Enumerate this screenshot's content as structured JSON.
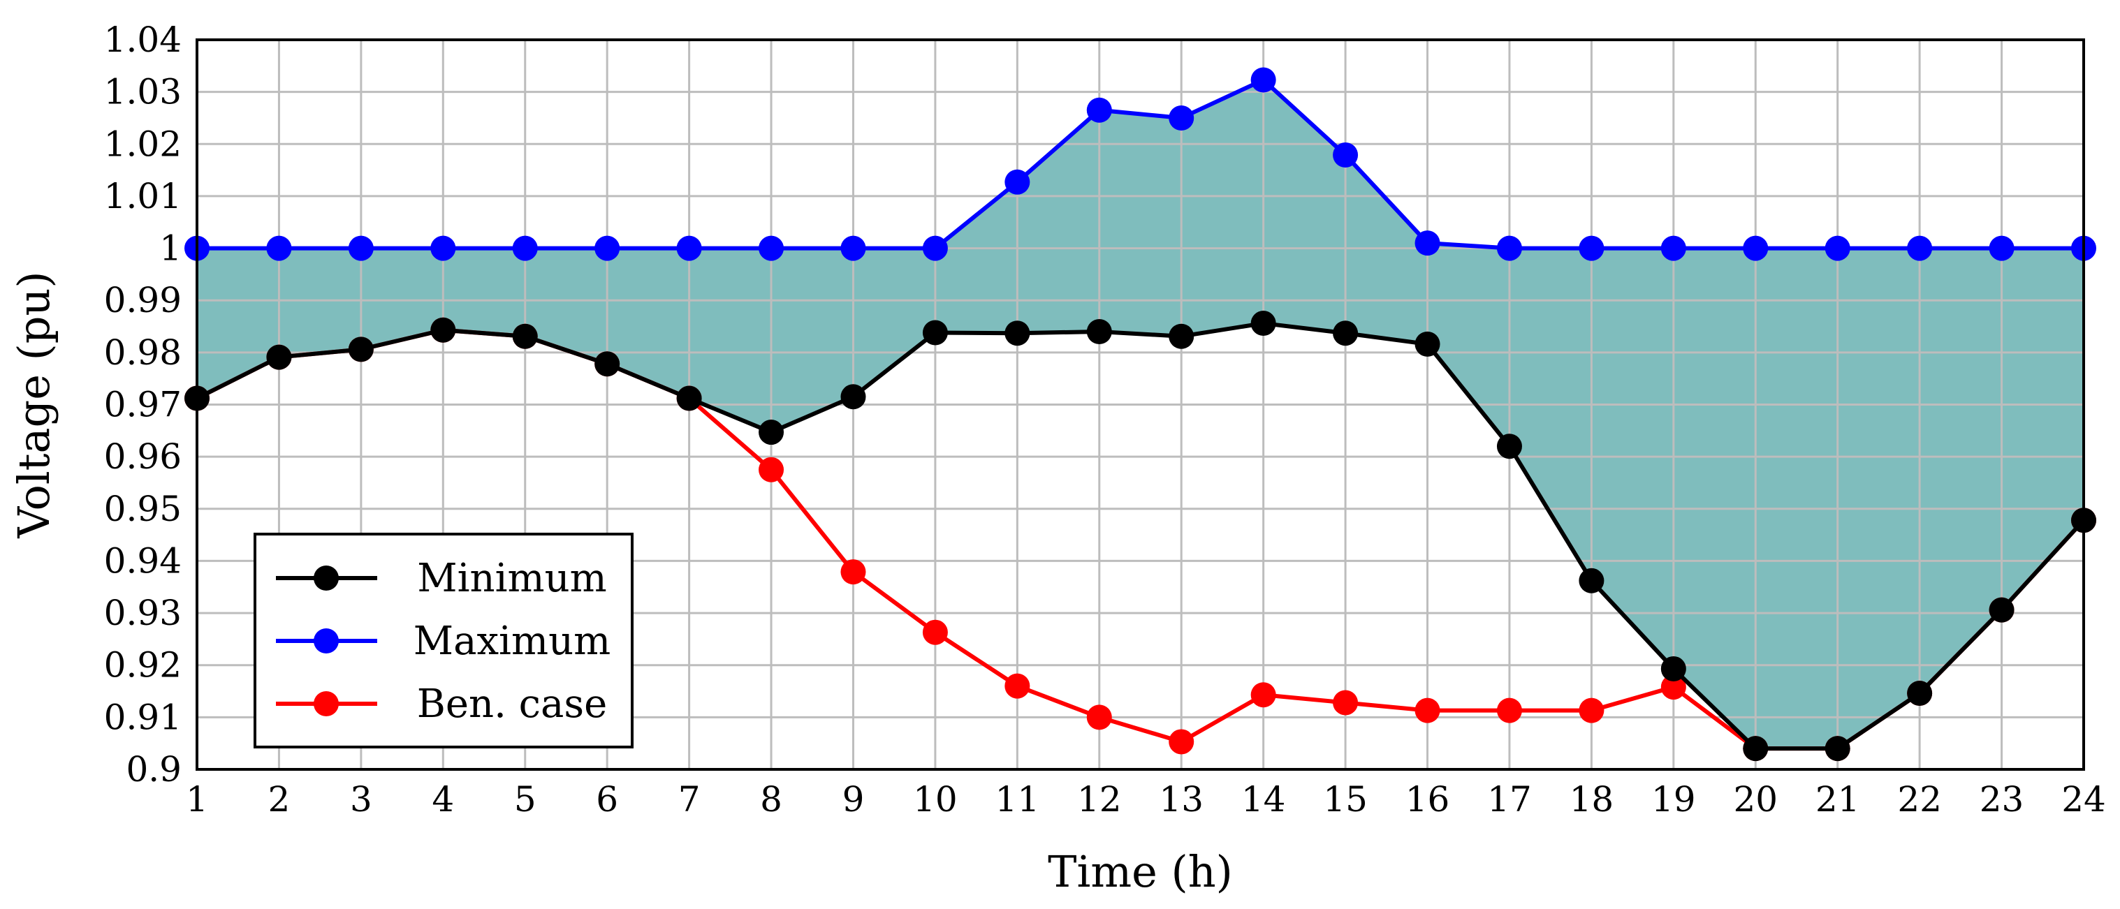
{
  "chart_data": {
    "type": "line",
    "xlabel": "Time (h)",
    "ylabel": "Voltage (pu)",
    "xlim": [
      1,
      24
    ],
    "ylim": [
      0.9,
      1.04
    ],
    "x": [
      1,
      2,
      3,
      4,
      5,
      6,
      7,
      8,
      9,
      10,
      11,
      12,
      13,
      14,
      15,
      16,
      17,
      18,
      19,
      20,
      21,
      22,
      23,
      24
    ],
    "x_tick_labels": [
      "1",
      "2",
      "3",
      "4",
      "5",
      "6",
      "7",
      "8",
      "9",
      "10",
      "11",
      "12",
      "13",
      "14",
      "15",
      "16",
      "17",
      "18",
      "19",
      "20",
      "21",
      "22",
      "23",
      "24"
    ],
    "y_ticks": [
      0.9,
      0.91,
      0.92,
      0.93,
      0.94,
      0.95,
      0.96,
      0.97,
      0.98,
      0.99,
      1.0,
      1.01,
      1.02,
      1.03,
      1.04
    ],
    "y_tick_labels": [
      "0.9",
      "0.91",
      "0.92",
      "0.93",
      "0.94",
      "0.95",
      "0.96",
      "0.97",
      "0.98",
      "0.99",
      "1",
      "1.01",
      "1.02",
      "1.03",
      "1.04"
    ],
    "grid": true,
    "legend_position": "bottom-left",
    "fill_between": {
      "upper": "Maximum",
      "lower": "Minimum",
      "color": "#7fbdbd"
    },
    "series": [
      {
        "name": "Minimum",
        "color": "#000000",
        "values": [
          0.9712,
          0.9791,
          0.9806,
          0.9843,
          0.9831,
          0.9778,
          0.9712,
          0.9647,
          0.9715,
          0.9838,
          0.9837,
          0.984,
          0.9831,
          0.9856,
          0.9837,
          0.9816,
          0.962,
          0.9362,
          0.9193,
          0.904,
          0.904,
          0.9146,
          0.9306,
          0.9478
        ]
      },
      {
        "name": "Maximum",
        "color": "#0000ff",
        "values": [
          1.0,
          1.0,
          1.0,
          1.0,
          1.0,
          1.0,
          1.0,
          1.0,
          1.0,
          1.0,
          1.0127,
          1.0265,
          1.025,
          1.0323,
          1.0179,
          1.001,
          1.0,
          1.0,
          1.0,
          1.0,
          1.0,
          1.0,
          1.0,
          1.0
        ]
      },
      {
        "name": "Ben. case",
        "color": "#ff0000",
        "values": [
          0.9712,
          0.9791,
          0.9806,
          0.9843,
          0.9831,
          0.9778,
          0.9712,
          0.9575,
          0.9379,
          0.9263,
          0.916,
          0.91,
          0.9053,
          0.9143,
          0.9128,
          0.9113,
          0.9113,
          0.9113,
          0.9158,
          0.904,
          0.904,
          0.9146,
          0.9306,
          0.9478
        ]
      }
    ]
  }
}
